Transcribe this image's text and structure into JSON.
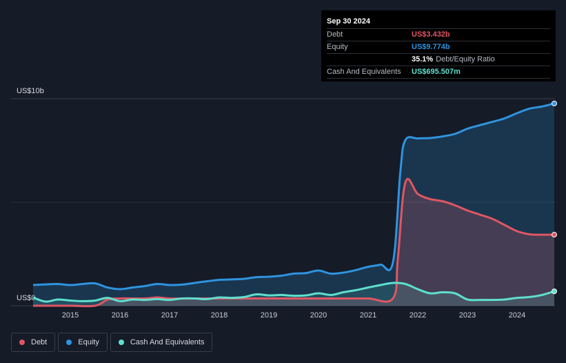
{
  "tooltip": {
    "date": "Sep 30 2024",
    "debt_label": "Debt",
    "debt_value": "US$3.432b",
    "equity_label": "Equity",
    "equity_value": "US$9.774b",
    "ratio_value": "35.1%",
    "ratio_label": "Debt/Equity Ratio",
    "cash_label": "Cash And Equivalents",
    "cash_value": "US$695.507m"
  },
  "legend": {
    "debt": "Debt",
    "equity": "Equity",
    "cash": "Cash And Equivalents"
  },
  "colors": {
    "debt": "#e05663",
    "equity": "#2f94e0",
    "cash": "#5fe0cf",
    "background": "#151b27"
  },
  "chart_data": {
    "type": "area",
    "y_label_top": "US$10b",
    "y_label_bottom": "US$0",
    "ylim": [
      0,
      10
    ],
    "y_unit": "US$ billions",
    "xlim": [
      2014.25,
      2024.75
    ],
    "x_ticks": [
      "2015",
      "2016",
      "2017",
      "2018",
      "2019",
      "2020",
      "2021",
      "2022",
      "2023",
      "2024"
    ],
    "x_tick_values": [
      2015,
      2016,
      2017,
      2018,
      2019,
      2020,
      2021,
      2022,
      2023,
      2024
    ],
    "grid": true,
    "legend_position": "bottom-left",
    "series": [
      {
        "name": "Equity",
        "key": "equity",
        "points": [
          [
            2014.25,
            1.0
          ],
          [
            2014.5,
            1.03
          ],
          [
            2014.75,
            1.05
          ],
          [
            2015.0,
            1.0
          ],
          [
            2015.25,
            1.05
          ],
          [
            2015.5,
            1.08
          ],
          [
            2015.75,
            0.88
          ],
          [
            2016.0,
            0.8
          ],
          [
            2016.25,
            0.88
          ],
          [
            2016.5,
            0.95
          ],
          [
            2016.75,
            1.05
          ],
          [
            2017.0,
            1.0
          ],
          [
            2017.25,
            1.02
          ],
          [
            2017.5,
            1.1
          ],
          [
            2017.75,
            1.18
          ],
          [
            2018.0,
            1.25
          ],
          [
            2018.25,
            1.27
          ],
          [
            2018.5,
            1.3
          ],
          [
            2018.75,
            1.38
          ],
          [
            2019.0,
            1.4
          ],
          [
            2019.25,
            1.45
          ],
          [
            2019.5,
            1.55
          ],
          [
            2019.75,
            1.58
          ],
          [
            2020.0,
            1.7
          ],
          [
            2020.25,
            1.55
          ],
          [
            2020.5,
            1.6
          ],
          [
            2020.75,
            1.72
          ],
          [
            2021.0,
            1.88
          ],
          [
            2021.25,
            1.98
          ],
          [
            2021.5,
            2.1
          ],
          [
            2021.65,
            6.5
          ],
          [
            2021.75,
            8.0
          ],
          [
            2022.0,
            8.08
          ],
          [
            2022.25,
            8.1
          ],
          [
            2022.5,
            8.18
          ],
          [
            2022.75,
            8.3
          ],
          [
            2023.0,
            8.55
          ],
          [
            2023.25,
            8.72
          ],
          [
            2023.5,
            8.88
          ],
          [
            2023.75,
            9.05
          ],
          [
            2024.0,
            9.3
          ],
          [
            2024.25,
            9.52
          ],
          [
            2024.5,
            9.62
          ],
          [
            2024.75,
            9.77
          ]
        ]
      },
      {
        "name": "Debt",
        "key": "debt",
        "points": [
          [
            2014.25,
            0.0
          ],
          [
            2014.5,
            0.0
          ],
          [
            2015.0,
            0.0
          ],
          [
            2015.5,
            0.0
          ],
          [
            2015.75,
            0.3
          ],
          [
            2016.0,
            0.35
          ],
          [
            2016.5,
            0.35
          ],
          [
            2016.75,
            0.4
          ],
          [
            2017.0,
            0.35
          ],
          [
            2017.5,
            0.35
          ],
          [
            2018.0,
            0.35
          ],
          [
            2018.5,
            0.35
          ],
          [
            2019.0,
            0.35
          ],
          [
            2019.5,
            0.35
          ],
          [
            2020.0,
            0.35
          ],
          [
            2020.5,
            0.35
          ],
          [
            2021.0,
            0.35
          ],
          [
            2021.5,
            0.35
          ],
          [
            2021.6,
            2.3
          ],
          [
            2021.75,
            5.95
          ],
          [
            2022.0,
            5.4
          ],
          [
            2022.25,
            5.15
          ],
          [
            2022.5,
            5.05
          ],
          [
            2022.75,
            4.85
          ],
          [
            2023.0,
            4.6
          ],
          [
            2023.25,
            4.4
          ],
          [
            2023.5,
            4.2
          ],
          [
            2023.75,
            3.9
          ],
          [
            2024.0,
            3.6
          ],
          [
            2024.25,
            3.45
          ],
          [
            2024.5,
            3.43
          ],
          [
            2024.75,
            3.432
          ]
        ]
      },
      {
        "name": "Cash And Equivalents",
        "key": "cash",
        "points": [
          [
            2014.25,
            0.4
          ],
          [
            2014.5,
            0.2
          ],
          [
            2014.75,
            0.3
          ],
          [
            2015.0,
            0.25
          ],
          [
            2015.25,
            0.22
          ],
          [
            2015.5,
            0.25
          ],
          [
            2015.75,
            0.38
          ],
          [
            2016.0,
            0.22
          ],
          [
            2016.25,
            0.3
          ],
          [
            2016.5,
            0.28
          ],
          [
            2016.75,
            0.32
          ],
          [
            2017.0,
            0.28
          ],
          [
            2017.25,
            0.35
          ],
          [
            2017.5,
            0.35
          ],
          [
            2017.75,
            0.32
          ],
          [
            2018.0,
            0.4
          ],
          [
            2018.25,
            0.38
          ],
          [
            2018.5,
            0.42
          ],
          [
            2018.75,
            0.55
          ],
          [
            2019.0,
            0.5
          ],
          [
            2019.25,
            0.52
          ],
          [
            2019.5,
            0.48
          ],
          [
            2019.75,
            0.5
          ],
          [
            2020.0,
            0.6
          ],
          [
            2020.25,
            0.52
          ],
          [
            2020.5,
            0.65
          ],
          [
            2020.75,
            0.75
          ],
          [
            2021.0,
            0.88
          ],
          [
            2021.25,
            1.0
          ],
          [
            2021.5,
            1.1
          ],
          [
            2021.75,
            1.05
          ],
          [
            2022.0,
            0.8
          ],
          [
            2022.25,
            0.6
          ],
          [
            2022.5,
            0.65
          ],
          [
            2022.75,
            0.6
          ],
          [
            2023.0,
            0.3
          ],
          [
            2023.25,
            0.28
          ],
          [
            2023.5,
            0.28
          ],
          [
            2023.75,
            0.3
          ],
          [
            2024.0,
            0.38
          ],
          [
            2024.25,
            0.42
          ],
          [
            2024.5,
            0.52
          ],
          [
            2024.75,
            0.696
          ]
        ]
      }
    ]
  }
}
